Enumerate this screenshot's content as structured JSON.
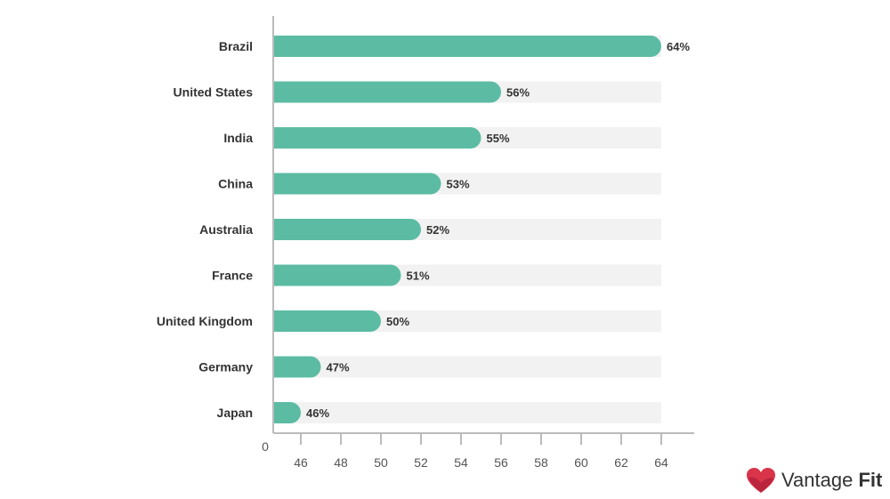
{
  "chart_data": {
    "type": "bar",
    "orientation": "horizontal",
    "categories": [
      "Brazil",
      "United States",
      "India",
      "China",
      "Australia",
      "France",
      "United Kingdom",
      "Germany",
      "Japan"
    ],
    "values": [
      64,
      56,
      55,
      53,
      52,
      51,
      50,
      47,
      46
    ],
    "value_labels": [
      "64%",
      "56%",
      "55%",
      "53%",
      "52%",
      "51%",
      "50%",
      "47%",
      "46%"
    ],
    "x_ticks": [
      46,
      48,
      50,
      52,
      54,
      56,
      58,
      60,
      62,
      64
    ],
    "x_origin_label": "0",
    "xlim": [
      45,
      66
    ],
    "track_max": 64,
    "title": "",
    "xlabel": "",
    "ylabel": "",
    "grid": false,
    "bar_color": "#5cbca3",
    "track_color": "#f2f2f2",
    "axis_color": "#bbbbbb"
  },
  "brand": {
    "name_regular": "Vantage",
    "name_bold": "Fit",
    "logo_icon": "heart-logo-icon"
  }
}
